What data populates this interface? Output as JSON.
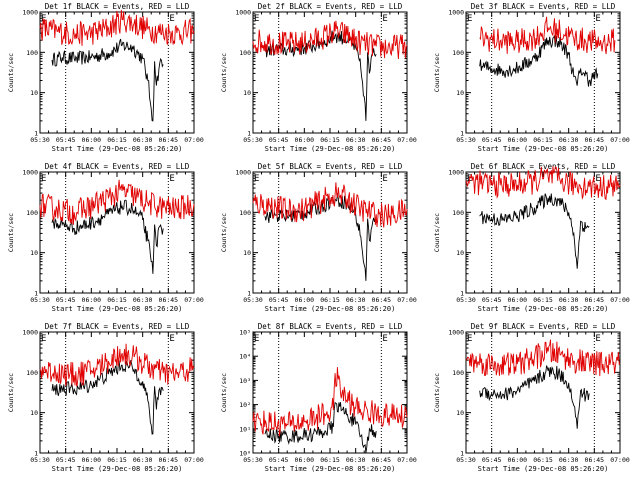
{
  "figure": {
    "xlabel": "Start Time (29-Dec-08 05:26:20)",
    "ylabel": "Counts/sec",
    "colors": {
      "events": "#000000",
      "lld": "#e00000",
      "axes": "#000000",
      "background": "#ffffff"
    }
  },
  "chart_data": [
    {
      "type": "line",
      "title": "Det 1f BLACK = Events, RED = LLD",
      "xlim": [
        "05:30",
        "07:00"
      ],
      "xticks": [
        "05:30",
        "05:45",
        "06:00",
        "06:15",
        "06:30",
        "06:45",
        "07:00"
      ],
      "yscale": "log",
      "ylim": [
        1,
        1000
      ],
      "yticks": [
        "1",
        "10",
        "100",
        "1000"
      ],
      "markers": {
        "E": [
          "05:30",
          "06:45"
        ]
      },
      "vlines": [
        "05:45",
        "06:45"
      ],
      "grid": false,
      "series": [
        {
          "role": "events",
          "x": [
            "05:37",
            "05:43",
            "05:50",
            "06:00",
            "06:10",
            "06:18",
            "06:24",
            "06:30",
            "06:33",
            "06:35",
            "06:36",
            "06:37",
            "06:38",
            "06:40",
            "06:42"
          ],
          "values": [
            65,
            75,
            70,
            75,
            95,
            150,
            135,
            70,
            20,
            4,
            2,
            60,
            15,
            55,
            50
          ]
        },
        {
          "role": "lld",
          "x": [
            "05:30",
            "05:40",
            "05:50",
            "06:00",
            "06:10",
            "06:18",
            "06:25",
            "06:33",
            "06:42",
            "06:50",
            "07:00"
          ],
          "values": [
            400,
            330,
            280,
            300,
            400,
            650,
            520,
            370,
            310,
            300,
            330
          ]
        }
      ]
    },
    {
      "type": "line",
      "title": "Det 2f BLACK = Events, RED = LLD",
      "xlim": [
        "05:30",
        "07:00"
      ],
      "xticks": [
        "05:30",
        "05:45",
        "06:00",
        "06:15",
        "06:30",
        "06:45",
        "07:00"
      ],
      "yscale": "log",
      "ylim": [
        1,
        1000
      ],
      "yticks": [
        "1",
        "10",
        "100",
        "1000"
      ],
      "markers": {
        "E": [
          "05:30",
          "06:45"
        ]
      },
      "vlines": [
        "05:45",
        "06:45"
      ],
      "grid": false,
      "series": [
        {
          "role": "events",
          "x": [
            "05:37",
            "05:43",
            "05:50",
            "06:00",
            "06:10",
            "06:18",
            "06:24",
            "06:30",
            "06:33",
            "06:35",
            "06:36",
            "06:37",
            "06:38",
            "06:40",
            "06:42"
          ],
          "values": [
            110,
            120,
            115,
            125,
            170,
            260,
            220,
            130,
            40,
            8,
            2,
            100,
            30,
            95,
            90
          ]
        },
        {
          "role": "lld",
          "x": [
            "05:30",
            "05:40",
            "05:50",
            "06:00",
            "06:10",
            "06:18",
            "06:25",
            "06:33",
            "06:42",
            "06:50",
            "07:00"
          ],
          "values": [
            190,
            180,
            160,
            170,
            230,
            330,
            260,
            170,
            140,
            130,
            150
          ]
        }
      ]
    },
    {
      "type": "line",
      "title": "Det 3f BLACK = Events, RED = LLD",
      "xlim": [
        "05:30",
        "07:00"
      ],
      "xticks": [
        "05:30",
        "05:45",
        "06:00",
        "06:15",
        "06:30",
        "06:45",
        "07:00"
      ],
      "yscale": "log",
      "ylim": [
        1,
        1000
      ],
      "yticks": [
        "1",
        "10",
        "100",
        "1000"
      ],
      "markers": {
        "E": [
          "05:30",
          "06:45"
        ]
      },
      "vlines": [
        "05:45",
        "06:45"
      ],
      "grid": false,
      "series": [
        {
          "role": "events",
          "x": [
            "05:38",
            "05:45",
            "05:52",
            "06:00",
            "06:10",
            "06:18",
            "06:24",
            "06:30",
            "06:33",
            "06:35",
            "06:37",
            "06:39",
            "06:42",
            "06:47"
          ],
          "values": [
            45,
            40,
            35,
            40,
            70,
            200,
            190,
            90,
            25,
            15,
            40,
            30,
            20,
            30
          ]
        },
        {
          "role": "lld",
          "x": [
            "05:38",
            "05:50",
            "06:00",
            "06:10",
            "06:18",
            "06:25",
            "06:33",
            "06:42",
            "06:50",
            "06:57"
          ],
          "values": [
            230,
            190,
            180,
            230,
            400,
            330,
            220,
            190,
            170,
            200
          ]
        }
      ]
    },
    {
      "type": "line",
      "title": "Det 4f BLACK = Events, RED = LLD",
      "xlim": [
        "05:30",
        "07:00"
      ],
      "xticks": [
        "05:30",
        "05:45",
        "06:00",
        "06:15",
        "06:30",
        "06:45",
        "07:00"
      ],
      "yscale": "log",
      "ylim": [
        1,
        1000
      ],
      "yticks": [
        "1",
        "10",
        "100",
        "1000"
      ],
      "markers": {
        "E": [
          "05:30",
          "06:45"
        ]
      },
      "vlines": [
        "05:45",
        "06:45"
      ],
      "grid": false,
      "series": [
        {
          "role": "events",
          "x": [
            "05:37",
            "05:43",
            "05:50",
            "06:00",
            "06:10",
            "06:18",
            "06:24",
            "06:30",
            "06:33",
            "06:35",
            "06:36",
            "06:37",
            "06:38",
            "06:40",
            "06:42"
          ],
          "values": [
            55,
            50,
            40,
            55,
            90,
            140,
            120,
            65,
            20,
            6,
            3,
            50,
            15,
            45,
            40
          ]
        },
        {
          "role": "lld",
          "x": [
            "05:30",
            "05:40",
            "05:50",
            "06:00",
            "06:10",
            "06:18",
            "06:25",
            "06:33",
            "06:42",
            "06:50",
            "07:00"
          ],
          "values": [
            150,
            120,
            100,
            140,
            230,
            340,
            260,
            170,
            130,
            120,
            160
          ]
        }
      ]
    },
    {
      "type": "line",
      "title": "Det 5f BLACK = Events, RED = LLD",
      "xlim": [
        "05:30",
        "07:00"
      ],
      "xticks": [
        "05:30",
        "05:45",
        "06:00",
        "06:15",
        "06:30",
        "06:45",
        "07:00"
      ],
      "yscale": "log",
      "ylim": [
        1,
        1000
      ],
      "yticks": [
        "1",
        "10",
        "100",
        "1000"
      ],
      "markers": {
        "E": [
          "05:30",
          "06:45"
        ]
      },
      "vlines": [
        "05:45",
        "06:45"
      ],
      "grid": false,
      "series": [
        {
          "role": "events",
          "x": [
            "05:37",
            "05:43",
            "05:50",
            "06:00",
            "06:10",
            "06:18",
            "06:24",
            "06:30",
            "06:33",
            "06:35",
            "06:36",
            "06:37",
            "06:38",
            "06:40",
            "06:42"
          ],
          "values": [
            80,
            85,
            80,
            95,
            140,
            210,
            180,
            90,
            25,
            5,
            2,
            70,
            20,
            60,
            55
          ]
        },
        {
          "role": "lld",
          "x": [
            "05:30",
            "05:40",
            "05:50",
            "06:00",
            "06:10",
            "06:18",
            "06:25",
            "06:33",
            "06:42",
            "06:50",
            "07:00"
          ],
          "values": [
            170,
            150,
            110,
            120,
            190,
            280,
            220,
            120,
            90,
            80,
            120
          ]
        }
      ]
    },
    {
      "type": "line",
      "title": "Det 6f BLACK = Events, RED = LLD",
      "xlim": [
        "05:30",
        "07:00"
      ],
      "xticks": [
        "05:30",
        "05:45",
        "06:00",
        "06:15",
        "06:30",
        "06:45",
        "07:00"
      ],
      "yscale": "log",
      "ylim": [
        1,
        1000
      ],
      "yticks": [
        "1",
        "10",
        "100",
        "1000"
      ],
      "markers": {
        "E": [
          "05:30",
          "06:45"
        ]
      },
      "vlines": [
        "05:45",
        "06:45"
      ],
      "grid": false,
      "series": [
        {
          "role": "events",
          "x": [
            "05:38",
            "05:45",
            "05:52",
            "06:00",
            "06:10",
            "06:18",
            "06:24",
            "06:30",
            "06:33",
            "06:35",
            "06:37",
            "06:40",
            "06:42"
          ],
          "values": [
            80,
            70,
            65,
            80,
            130,
            230,
            200,
            100,
            30,
            4,
            60,
            40,
            45
          ]
        },
        {
          "role": "lld",
          "x": [
            "05:30",
            "05:40",
            "05:50",
            "06:00",
            "06:10",
            "06:18",
            "06:25",
            "06:33",
            "06:42",
            "06:50",
            "07:00"
          ],
          "values": [
            620,
            520,
            470,
            480,
            580,
            760,
            620,
            480,
            430,
            420,
            480
          ]
        }
      ]
    },
    {
      "type": "line",
      "title": "Det 7f BLACK = Events, RED = LLD",
      "xlim": [
        "05:30",
        "07:00"
      ],
      "xticks": [
        "05:30",
        "05:45",
        "06:00",
        "06:15",
        "06:30",
        "06:45",
        "07:00"
      ],
      "yscale": "log",
      "ylim": [
        1,
        1000
      ],
      "yticks": [
        "1",
        "10",
        "100",
        "1000"
      ],
      "markers": {
        "E": [
          "05:30",
          "06:45"
        ]
      },
      "vlines": [
        "05:45",
        "06:45"
      ],
      "grid": false,
      "series": [
        {
          "role": "events",
          "x": [
            "05:37",
            "05:43",
            "05:50",
            "06:00",
            "06:10",
            "06:18",
            "06:24",
            "06:30",
            "06:33",
            "06:35",
            "06:36",
            "06:37",
            "06:38",
            "06:40",
            "06:42"
          ],
          "values": [
            35,
            40,
            38,
            50,
            90,
            150,
            130,
            60,
            20,
            5,
            3,
            45,
            12,
            40,
            35
          ]
        },
        {
          "role": "lld",
          "x": [
            "05:30",
            "05:40",
            "05:50",
            "06:00",
            "06:10",
            "06:18",
            "06:25",
            "06:33",
            "06:42",
            "06:50",
            "07:00"
          ],
          "values": [
            120,
            100,
            85,
            110,
            190,
            300,
            240,
            140,
            95,
            90,
            130
          ]
        }
      ]
    },
    {
      "type": "line",
      "title": "Det 8f BLACK = Events, RED = LLD",
      "xlim": [
        "05:30",
        "07:00"
      ],
      "xticks": [
        "05:30",
        "05:45",
        "06:00",
        "06:15",
        "06:30",
        "06:45",
        "07:00"
      ],
      "yscale": "log",
      "ylim": [
        1,
        100000
      ],
      "yticks": [
        "10⁰",
        "10¹",
        "10²",
        "10³",
        "10⁴",
        "10⁵"
      ],
      "markers": {
        "E": [
          "05:30",
          "06:45"
        ]
      },
      "vlines": [
        "05:45",
        "06:45"
      ],
      "grid": false,
      "series": [
        {
          "role": "events",
          "x": [
            "05:37",
            "05:45",
            "05:55",
            "06:05",
            "06:12",
            "06:17",
            "06:18",
            "06:22",
            "06:27",
            "06:30",
            "06:33",
            "06:35",
            "06:36",
            "06:38",
            "06:42"
          ],
          "values": [
            6,
            5,
            5,
            6,
            8,
            12,
            120,
            60,
            30,
            15,
            5,
            2,
            1,
            10,
            8
          ]
        },
        {
          "role": "lld",
          "x": [
            "05:30",
            "05:40",
            "05:50",
            "06:00",
            "06:10",
            "06:17",
            "06:18",
            "06:22",
            "06:30",
            "06:40",
            "06:50",
            "07:00"
          ],
          "values": [
            20,
            18,
            15,
            20,
            35,
            60,
            2000,
            300,
            70,
            45,
            35,
            30
          ]
        }
      ]
    },
    {
      "type": "line",
      "title": "Det 9f BLACK = Events, RED = LLD",
      "xlim": [
        "05:30",
        "07:00"
      ],
      "xticks": [
        "05:30",
        "05:45",
        "06:00",
        "06:15",
        "06:30",
        "06:45",
        "07:00"
      ],
      "yscale": "log",
      "ylim": [
        1,
        1000
      ],
      "yticks": [
        "1",
        "10",
        "100",
        "1000"
      ],
      "markers": {
        "E": [
          "05:30",
          "06:45"
        ]
      },
      "vlines": [
        "05:45",
        "06:45"
      ],
      "grid": false,
      "series": [
        {
          "role": "events",
          "x": [
            "05:38",
            "05:45",
            "05:52",
            "06:00",
            "06:10",
            "06:18",
            "06:24",
            "06:30",
            "06:33",
            "06:35",
            "06:37",
            "06:40",
            "06:42"
          ],
          "values": [
            35,
            30,
            28,
            35,
            60,
            110,
            95,
            55,
            15,
            4,
            35,
            25,
            30
          ]
        },
        {
          "role": "lld",
          "x": [
            "05:30",
            "05:40",
            "05:50",
            "06:00",
            "06:10",
            "06:18",
            "06:25",
            "06:33",
            "06:42",
            "06:50",
            "07:00"
          ],
          "values": [
            200,
            170,
            150,
            160,
            230,
            330,
            270,
            190,
            170,
            160,
            170
          ]
        }
      ]
    }
  ]
}
